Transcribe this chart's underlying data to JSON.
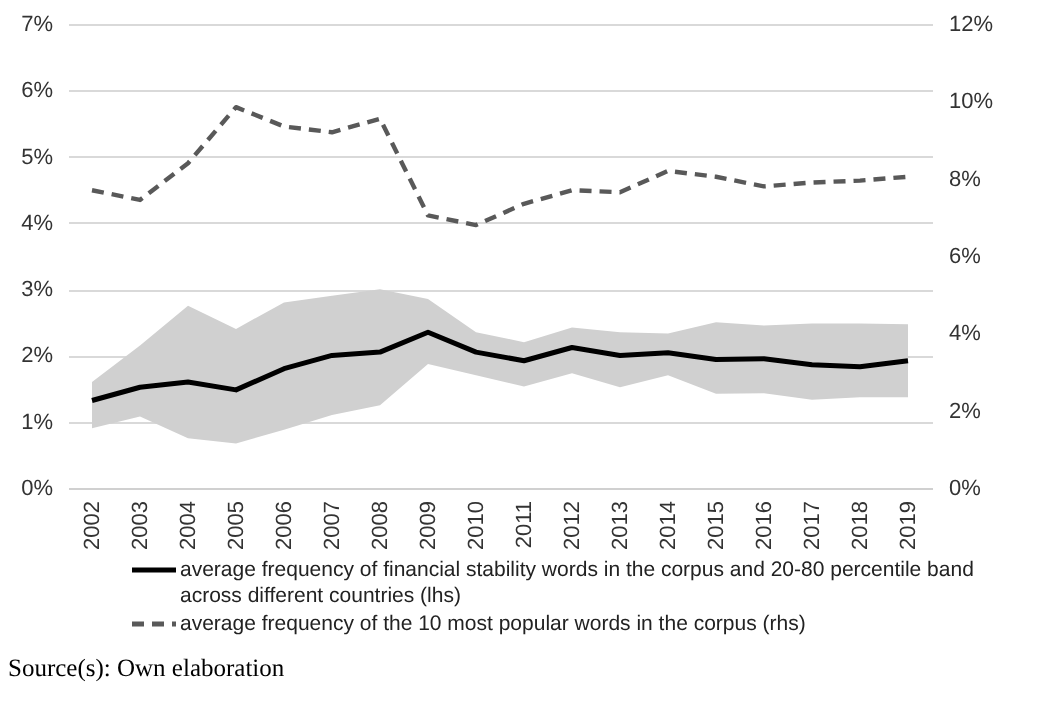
{
  "chart_data": {
    "type": "line",
    "categories": [
      "2002",
      "2003",
      "2004",
      "2005",
      "2006",
      "2007",
      "2008",
      "2009",
      "2010",
      "2011",
      "2012",
      "2013",
      "2014",
      "2015",
      "2016",
      "2017",
      "2018",
      "2019"
    ],
    "series": [
      {
        "name": "average frequency of financial stability words in the corpus and 20-80 percentile band across different countries (lhs)",
        "color": "#000000",
        "values": [
          1.32,
          1.52,
          1.6,
          1.48,
          1.8,
          2.0,
          2.05,
          2.35,
          2.05,
          1.92,
          2.12,
          2.0,
          2.04,
          1.94,
          1.95,
          1.86,
          1.83,
          1.92
        ],
        "lower": [
          0.9,
          1.08,
          0.75,
          0.67,
          0.88,
          1.1,
          1.25,
          1.87,
          1.7,
          1.53,
          1.73,
          1.52,
          1.7,
          1.42,
          1.43,
          1.33,
          1.37,
          1.37
        ],
        "upper": [
          1.6,
          2.15,
          2.75,
          2.4,
          2.8,
          2.9,
          3.0,
          2.85,
          2.35,
          2.2,
          2.42,
          2.35,
          2.33,
          2.5,
          2.45,
          2.48,
          2.48,
          2.47
        ]
      },
      {
        "name": "average frequency of the 10 most popular words in the corpus (rhs)",
        "color": "#595959",
        "axis": "y2",
        "line_style": "dashed",
        "values": [
          7.7,
          7.45,
          8.4,
          9.85,
          9.35,
          9.2,
          9.55,
          7.05,
          6.8,
          7.35,
          7.7,
          7.65,
          8.2,
          8.05,
          7.8,
          7.9,
          7.95,
          8.05
        ]
      }
    ],
    "ylim": [
      0,
      7
    ],
    "yticks": [
      {
        "value": 0,
        "label": "0%"
      },
      {
        "value": 1,
        "label": "1%"
      },
      {
        "value": 2,
        "label": "2%"
      },
      {
        "value": 3,
        "label": "3%"
      },
      {
        "value": 4,
        "label": "4%"
      },
      {
        "value": 5,
        "label": "5%"
      },
      {
        "value": 6,
        "label": "6%"
      },
      {
        "value": 7,
        "label": "7%"
      }
    ],
    "y2lim": [
      0,
      12
    ],
    "y2ticks": [
      {
        "value": 0,
        "label": "0%"
      },
      {
        "value": 2,
        "label": "2%"
      },
      {
        "value": 4,
        "label": "4%"
      },
      {
        "value": 6,
        "label": "6%"
      },
      {
        "value": 8,
        "label": "8%"
      },
      {
        "value": 10,
        "label": "10%"
      },
      {
        "value": 12,
        "label": "12%"
      }
    ],
    "grid": "y",
    "legend": "bottom",
    "annotations": [
      "Source(s): Own elaboration"
    ]
  }
}
